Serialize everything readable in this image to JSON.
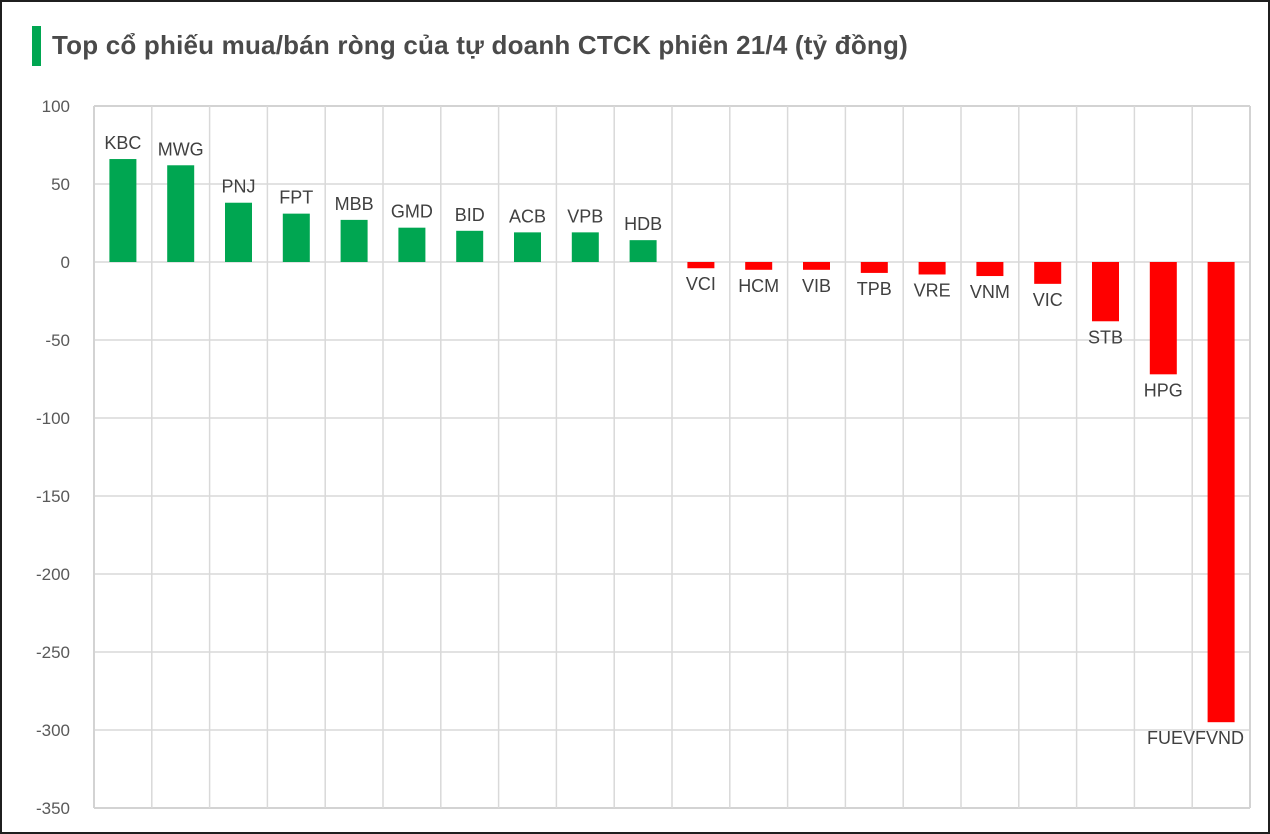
{
  "window": {
    "border_color": "#1f1f1f",
    "background": "#ffffff"
  },
  "header": {
    "title": "Top cổ phiếu mua/bán ròng của tự doanh CTCK phiên 21/4 (tỷ đồng)",
    "accent_color": "#00A651",
    "title_color": "#4a4a4a"
  },
  "chart_data": {
    "type": "bar",
    "title": "Top cổ phiếu mua/bán ròng của tự doanh CTCK phiên 21/4 (tỷ đồng)",
    "categories": [
      "KBC",
      "MWG",
      "PNJ",
      "FPT",
      "MBB",
      "GMD",
      "BID",
      "ACB",
      "VPB",
      "HDB",
      "VCI",
      "HCM",
      "VIB",
      "TPB",
      "VRE",
      "VNM",
      "VIC",
      "STB",
      "HPG",
      "FUEVFVND"
    ],
    "values": [
      66,
      62,
      38,
      31,
      27,
      22,
      20,
      19,
      19,
      14,
      -4,
      -5,
      -5,
      -7,
      -8,
      -9,
      -14,
      -38,
      -72,
      -295
    ],
    "xlabel": "",
    "ylabel": "",
    "ylim": [
      -350,
      100
    ],
    "yticks": [
      100,
      50,
      0,
      -50,
      -100,
      -150,
      -200,
      -250,
      -300,
      -350
    ],
    "grid": true,
    "legend": "none",
    "positive_color": "#00A651",
    "negative_color": "#FF0000",
    "gridline_color": "#D9D9D9",
    "plot_border_color": "#D3D3D3",
    "tick_color": "#595959",
    "category_label_color": "#404040"
  }
}
